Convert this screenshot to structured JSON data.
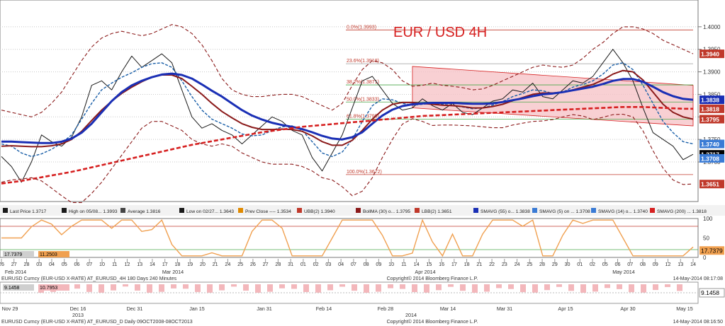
{
  "chart_data": {
    "type": "line",
    "title": "EUR / USD 4H",
    "instrument": "EURUSD Curncy (EUR-USD X-RATE)",
    "price_axis": {
      "ticks": [
        "1.4000",
        "1.3950",
        "1.3900",
        "1.3850",
        "1.3800",
        "1.3750",
        "1.3700"
      ],
      "tick_values": [
        1.4,
        1.395,
        1.39,
        1.385,
        1.38,
        1.375,
        1.37
      ],
      "ylim": [
        1.362,
        1.405
      ],
      "labels": [
        {
          "text": "1.3940",
          "value": 1.394,
          "color": "#c0392b"
        },
        {
          "text": "1.3838",
          "value": 1.3838,
          "color": "#1a2fb5"
        },
        {
          "text": "1.3818",
          "value": 1.3818,
          "color": "#c0392b"
        },
        {
          "text": "1.3795",
          "value": 1.3795,
          "color": "#c0392b"
        },
        {
          "text": "1.3740",
          "value": 1.374,
          "color": "#3a7bd5"
        },
        {
          "text": "1.3717",
          "value": 1.3717,
          "color": "#000000"
        },
        {
          "text": "1.3708",
          "value": 1.3708,
          "color": "#3a7bd5"
        },
        {
          "text": "1.3651",
          "value": 1.3651,
          "color": "#c0392b"
        }
      ]
    },
    "fibonacci": [
      {
        "label": "0.0%(1.3993)",
        "value": 1.3993
      },
      {
        "label": "23.6%(1.3918)",
        "value": 1.3918
      },
      {
        "label": "38.2%(1.3871)",
        "value": 1.3871
      },
      {
        "label": "50.0%(1.3833)",
        "value": 1.3833
      },
      {
        "label": "61.8%(1.3795)",
        "value": 1.3795
      },
      {
        "label": "100.0%(1.3672)",
        "value": 1.3672
      }
    ],
    "legend": [
      "Last Price 1.3717",
      "High on 05/08... 1.3993",
      "Average 1.3816",
      "Low on 02/27... 1.3643",
      "Prev Close ---- 1.3534",
      "UBB(2) 1.3940",
      "BollMA (30) o... 1.3795",
      "LBB(2) 1.3651",
      "SMAVG (55) o... 1.3838",
      "SMAVG (5) on ... 1.3708",
      "SMAVG (14) o... 1.3740",
      "SMAVG (200) ... 1.3818"
    ],
    "series": [
      {
        "name": "Last Price",
        "color": "#1a1a1a",
        "values": [
          1.3712,
          1.369,
          1.3655,
          1.37,
          1.376,
          1.3745,
          1.3735,
          1.3755,
          1.38,
          1.387,
          1.388,
          1.386,
          1.39,
          1.3935,
          1.391,
          1.3925,
          1.394,
          1.392,
          1.386,
          1.38,
          1.3775,
          1.3785,
          1.377,
          1.376,
          1.374,
          1.376,
          1.378,
          1.38,
          1.379,
          1.377,
          1.376,
          1.371,
          1.368,
          1.372,
          1.376,
          1.382,
          1.388,
          1.389,
          1.386,
          1.383,
          1.3815,
          1.382,
          1.384,
          1.3825,
          1.3815,
          1.383,
          1.381,
          1.3805,
          1.382,
          1.3835,
          1.384,
          1.386,
          1.3855,
          1.3875,
          1.3845,
          1.384,
          1.386,
          1.388,
          1.3875,
          1.389,
          1.392,
          1.395,
          1.392,
          1.388,
          1.382,
          1.3765,
          1.375,
          1.3735,
          1.3705,
          1.3717
        ]
      },
      {
        "name": "SMAVG (14)",
        "color": "#1a5fa8",
        "values": [
          1.374,
          1.3735,
          1.372,
          1.3712,
          1.3718,
          1.3728,
          1.3742,
          1.376,
          1.3795,
          1.383,
          1.386,
          1.3875,
          1.3888,
          1.3898,
          1.391,
          1.3918,
          1.392,
          1.391,
          1.388,
          1.3845,
          1.3815,
          1.3795,
          1.3785,
          1.3775,
          1.3762,
          1.3758,
          1.376,
          1.377,
          1.3778,
          1.378,
          1.377,
          1.3745,
          1.372,
          1.3712,
          1.3722,
          1.375,
          1.379,
          1.3825,
          1.384,
          1.3838,
          1.383,
          1.3826,
          1.3828,
          1.383,
          1.3828,
          1.3826,
          1.3822,
          1.3818,
          1.382,
          1.3826,
          1.3834,
          1.3845,
          1.3852,
          1.386,
          1.3858,
          1.3852,
          1.3855,
          1.3866,
          1.3872,
          1.388,
          1.3895,
          1.3915,
          1.392,
          1.3905,
          1.387,
          1.383,
          1.379,
          1.3765,
          1.3745,
          1.374
        ]
      },
      {
        "name": "BollMA (30)",
        "color": "#8b1a1a",
        "values": [
          1.3735,
          1.3736,
          1.3735,
          1.3734,
          1.3734,
          1.3736,
          1.374,
          1.375,
          1.3768,
          1.3792,
          1.3815,
          1.3835,
          1.3852,
          1.3866,
          1.3878,
          1.3888,
          1.3893,
          1.3893,
          1.3885,
          1.3868,
          1.385,
          1.383,
          1.3812,
          1.3798,
          1.3785,
          1.3777,
          1.3772,
          1.3772,
          1.3773,
          1.3772,
          1.3768,
          1.3758,
          1.3745,
          1.3737,
          1.3737,
          1.3748,
          1.377,
          1.3795,
          1.3815,
          1.3828,
          1.3832,
          1.3832,
          1.383,
          1.3828,
          1.3826,
          1.3825,
          1.3823,
          1.382,
          1.382,
          1.3823,
          1.3828,
          1.3836,
          1.3843,
          1.385,
          1.3853,
          1.3853,
          1.3855,
          1.386,
          1.3866,
          1.3872,
          1.3882,
          1.3895,
          1.3903,
          1.39,
          1.3882,
          1.3855,
          1.3828,
          1.381,
          1.38,
          1.3795
        ]
      },
      {
        "name": "SMAVG (55)",
        "color": "#1a2fb5",
        "values": [
          1.3745,
          1.3745,
          1.3744,
          1.3743,
          1.3742,
          1.3742,
          1.3745,
          1.3752,
          1.3765,
          1.3785,
          1.381,
          1.3835,
          1.3855,
          1.387,
          1.388,
          1.3888,
          1.3894,
          1.3896,
          1.3893,
          1.3885,
          1.3872,
          1.3858,
          1.3845,
          1.383,
          1.3815,
          1.3803,
          1.3794,
          1.3787,
          1.3782,
          1.3778,
          1.3773,
          1.3766,
          1.3758,
          1.3752,
          1.375,
          1.3755,
          1.3766,
          1.3785,
          1.3803,
          1.3816,
          1.3824,
          1.3828,
          1.383,
          1.3831,
          1.3831,
          1.3831,
          1.383,
          1.3829,
          1.3829,
          1.383,
          1.3833,
          1.3837,
          1.3841,
          1.3846,
          1.385,
          1.3852,
          1.3855,
          1.3859,
          1.3863,
          1.3867,
          1.3873,
          1.388,
          1.3884,
          1.3884,
          1.3878,
          1.3867,
          1.3855,
          1.3846,
          1.384,
          1.3838
        ]
      },
      {
        "name": "SMAVG (200)",
        "color": "#d62020",
        "values": [
          1.3652,
          1.3655,
          1.3658,
          1.3662,
          1.3666,
          1.367,
          1.3674,
          1.3678,
          1.3683,
          1.3688,
          1.3693,
          1.3698,
          1.3703,
          1.3708,
          1.3713,
          1.3718,
          1.3723,
          1.3728,
          1.3733,
          1.3738,
          1.3742,
          1.3746,
          1.375,
          1.3754,
          1.3758,
          1.3762,
          1.3766,
          1.3769,
          1.3772,
          1.3775,
          1.3778,
          1.378,
          1.3782,
          1.3784,
          1.3786,
          1.3788,
          1.379,
          1.3792,
          1.3794,
          1.3796,
          1.3798,
          1.38,
          1.3802,
          1.3803,
          1.3804,
          1.3805,
          1.3806,
          1.3807,
          1.3808,
          1.3809,
          1.381,
          1.3811,
          1.3812,
          1.3813,
          1.3814,
          1.3815,
          1.3816,
          1.3817,
          1.3818,
          1.3819,
          1.382,
          1.3821,
          1.3822,
          1.3822,
          1.3822,
          1.3821,
          1.382,
          1.3819,
          1.3818,
          1.3818
        ]
      },
      {
        "name": "UBB(2)",
        "color": "#8b1a1a",
        "values": [
          1.3815,
          1.381,
          1.3805,
          1.38,
          1.381,
          1.383,
          1.3855,
          1.389,
          1.3925,
          1.3955,
          1.3975,
          1.3985,
          1.399,
          1.3985,
          1.398,
          1.3985,
          1.3995,
          1.4005,
          1.4,
          1.3985,
          1.396,
          1.3925,
          1.3885,
          1.386,
          1.385,
          1.3845,
          1.3845,
          1.3848,
          1.385,
          1.385,
          1.3845,
          1.3835,
          1.3825,
          1.3815,
          1.383,
          1.387,
          1.3905,
          1.3925,
          1.392,
          1.3905,
          1.388,
          1.3868,
          1.387,
          1.3875,
          1.387,
          1.3868,
          1.3865,
          1.386,
          1.3862,
          1.387,
          1.388,
          1.389,
          1.39,
          1.391,
          1.3915,
          1.3912,
          1.391,
          1.3915,
          1.393,
          1.395,
          1.3965,
          1.3985,
          1.4,
          1.4,
          1.3995,
          1.3985,
          1.397,
          1.396,
          1.395,
          1.394
        ]
      },
      {
        "name": "LBB(2)",
        "color": "#8b1a1a",
        "values": [
          1.3655,
          1.366,
          1.3662,
          1.3665,
          1.3658,
          1.3642,
          1.3625,
          1.361,
          1.361,
          1.363,
          1.3655,
          1.3685,
          1.3715,
          1.3745,
          1.3775,
          1.379,
          1.379,
          1.378,
          1.377,
          1.375,
          1.374,
          1.3735,
          1.374,
          1.3735,
          1.372,
          1.371,
          1.37,
          1.3695,
          1.3695,
          1.3695,
          1.369,
          1.368,
          1.3665,
          1.366,
          1.3645,
          1.3625,
          1.3635,
          1.3665,
          1.371,
          1.375,
          1.3784,
          1.3796,
          1.379,
          1.3781,
          1.3782,
          1.3782,
          1.3781,
          1.378,
          1.3778,
          1.3776,
          1.3776,
          1.3782,
          1.3786,
          1.379,
          1.3791,
          1.3794,
          1.38,
          1.3805,
          1.3802,
          1.3794,
          1.3799,
          1.3805,
          1.3806,
          1.38,
          1.3769,
          1.3725,
          1.3686,
          1.366,
          1.365,
          1.3651
        ]
      }
    ],
    "upper_dates": {
      "labels": [
        "26",
        "27",
        "28",
        "03",
        "04",
        "05",
        "06",
        "07",
        "10",
        "11",
        "12",
        "13",
        "14",
        "17",
        "18",
        "19",
        "20",
        "21",
        "24",
        "25",
        "26",
        "27",
        "28",
        "31",
        "01",
        "02",
        "03",
        "04",
        "07",
        "08",
        "09",
        "10",
        "11",
        "14",
        "15",
        "16",
        "17",
        "18",
        "21",
        "22",
        "23",
        "24",
        "25",
        "28",
        "29",
        "30",
        "01",
        "02",
        "05",
        "06",
        "07",
        "08",
        "09",
        "12",
        "13",
        "14"
      ],
      "month_labels": [
        "Feb 2014",
        "Mar 2014",
        "Apr 2014",
        "May 2014"
      ]
    },
    "oscillator": {
      "ticks": [
        "100",
        "50",
        "0"
      ],
      "ylim": [
        0,
        100
      ],
      "labels": [
        "17.7379"
      ],
      "legend": [
        "17.7379",
        "11.2503"
      ]
    },
    "lower_panel": {
      "info_left": "EURUSD Curncy (EUR-USD X-RATE) AT_EURUSD_4H 180 Days 240 Minutes",
      "copyright": "Copyright© 2014 Bloomberg Finance L.P.",
      "info_right": "14-May-2014 08:17:08",
      "legend": [
        "9.1458",
        "10.7953"
      ],
      "labels": [
        "9.1458"
      ],
      "dates": [
        "Nov 29",
        "Dec 16",
        "Dec 31",
        "Jan 15",
        "Jan 31",
        "Feb 14",
        "Feb 28",
        "Mar 14",
        "Mar 31",
        "Apr 15",
        "Apr 30",
        "May 15"
      ],
      "years": [
        "2013",
        "2014"
      ]
    },
    "footer": {
      "left": "EURUSD Curncy (EUR-USD X-RATE) AT_EURUSD_D Daily 09OCT2008-08OCT2013",
      "center": "Copyright© 2014 Bloomberg Finance L.P.",
      "right": "14-May-2014 08:16:50"
    }
  }
}
